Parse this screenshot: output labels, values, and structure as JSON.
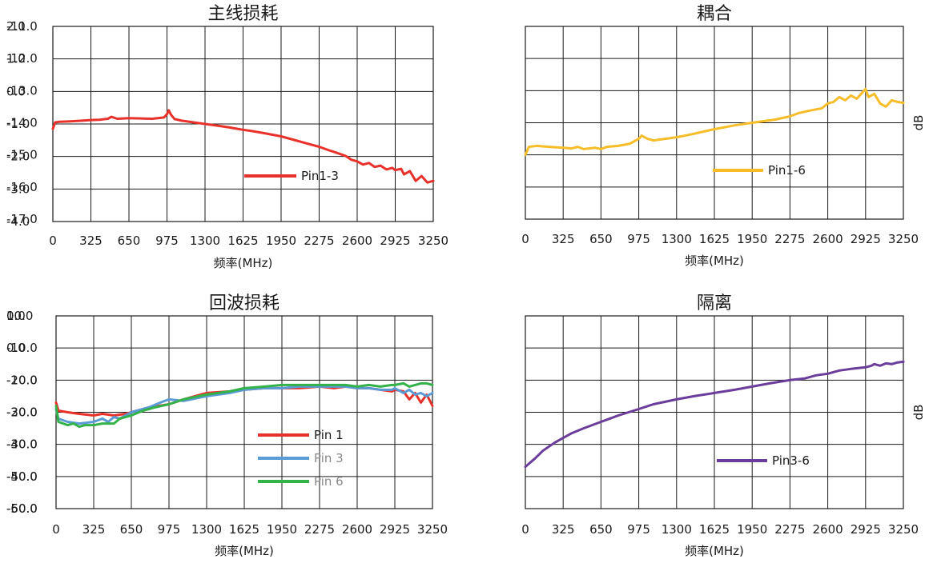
{
  "colors": {
    "red": "#e8312b",
    "yellow": "#f6bd28",
    "blue": "#5b9bd5",
    "green": "#33b249",
    "purple": "#6a3d9a"
  },
  "chart_data": [
    {
      "id": "insertion-loss",
      "type": "line",
      "title": "主线损耗",
      "xlabel": "频率(MHz)",
      "ylabel": "",
      "x_ticks": [
        "0",
        "325",
        "650",
        "975",
        "1300",
        "1625",
        "1950",
        "2275",
        "2600",
        "2925",
        "3250"
      ],
      "y_ticks": [
        "2.0",
        "1.0",
        "0.0",
        "-1.0",
        "-2.0",
        "-3.0",
        "-4.0"
      ],
      "xlim": [
        0,
        3250
      ],
      "ylim": [
        -4,
        2
      ],
      "grid": true,
      "legend_position": "center-right",
      "series": [
        {
          "name": "Pin1-3",
          "color": "#e8312b",
          "x": [
            0,
            20,
            60,
            150,
            250,
            325,
            400,
            470,
            500,
            550,
            650,
            750,
            850,
            950,
            975,
            990,
            1010,
            1040,
            1100,
            1200,
            1300,
            1400,
            1500,
            1625,
            1700,
            1800,
            1950,
            2050,
            2150,
            2275,
            2350,
            2420,
            2500,
            2550,
            2600,
            2650,
            2700,
            2750,
            2800,
            2850,
            2900,
            2925,
            2975,
            3000,
            3050,
            3100,
            3150,
            3200,
            3250
          ],
          "y": [
            -1.15,
            -0.95,
            -0.93,
            -0.92,
            -0.9,
            -0.88,
            -0.87,
            -0.84,
            -0.78,
            -0.84,
            -0.82,
            -0.83,
            -0.84,
            -0.8,
            -0.7,
            -0.58,
            -0.72,
            -0.85,
            -0.9,
            -0.95,
            -1.0,
            -1.05,
            -1.1,
            -1.18,
            -1.22,
            -1.28,
            -1.38,
            -1.48,
            -1.58,
            -1.7,
            -1.8,
            -1.88,
            -1.98,
            -2.1,
            -2.15,
            -2.25,
            -2.2,
            -2.32,
            -2.28,
            -2.4,
            -2.35,
            -2.42,
            -2.38,
            -2.55,
            -2.45,
            -2.75,
            -2.6,
            -2.8,
            -2.75
          ]
        }
      ]
    },
    {
      "id": "coupling",
      "type": "line",
      "title": "耦合",
      "xlabel": "频率(MHz)",
      "ylabel": "dB",
      "x_ticks": [
        "0",
        "325",
        "650",
        "975",
        "1300",
        "1625",
        "1950",
        "2275",
        "2600",
        "2925",
        "3250"
      ],
      "y_ticks": [
        "-11.0",
        "-12.0",
        "-13.0",
        "-14.0",
        "-15.0",
        "-16.0",
        "-17.0"
      ],
      "xlim": [
        0,
        3250
      ],
      "ylim": [
        -17,
        -11
      ],
      "grid": true,
      "legend_position": "center-right",
      "series": [
        {
          "name": "Pin1-6",
          "color": "#f6bd28",
          "x": [
            0,
            30,
            100,
            200,
            325,
            400,
            450,
            500,
            550,
            600,
            650,
            700,
            800,
            900,
            975,
            1000,
            1050,
            1100,
            1200,
            1300,
            1400,
            1500,
            1625,
            1700,
            1800,
            1950,
            2050,
            2150,
            2275,
            2350,
            2450,
            2550,
            2600,
            2650,
            2700,
            2750,
            2800,
            2850,
            2900,
            2925,
            2950,
            3000,
            3050,
            3100,
            3150,
            3200,
            3250
          ],
          "y": [
            -15.0,
            -14.75,
            -14.72,
            -14.75,
            -14.78,
            -14.8,
            -14.75,
            -14.82,
            -14.8,
            -14.78,
            -14.82,
            -14.75,
            -14.72,
            -14.65,
            -14.5,
            -14.4,
            -14.5,
            -14.55,
            -14.5,
            -14.45,
            -14.38,
            -14.3,
            -14.2,
            -14.15,
            -14.08,
            -14.0,
            -13.95,
            -13.9,
            -13.8,
            -13.7,
            -13.62,
            -13.55,
            -13.4,
            -13.35,
            -13.2,
            -13.3,
            -13.15,
            -13.25,
            -13.05,
            -12.95,
            -13.2,
            -13.1,
            -13.4,
            -13.5,
            -13.3,
            -13.35,
            -13.38
          ]
        }
      ]
    },
    {
      "id": "return-loss",
      "type": "line",
      "title": "回波损耗",
      "xlabel": "频率(MHz)",
      "ylabel": "",
      "x_ticks": [
        "0",
        "325",
        "650",
        "975",
        "1300",
        "1625",
        "1950",
        "2275",
        "2600",
        "2925",
        "3250"
      ],
      "y_ticks": [
        "10.0",
        "0.0",
        "-10.0",
        "-20.0",
        "-30.0",
        "-40.0",
        "-50.0"
      ],
      "xlim": [
        0,
        3250
      ],
      "ylim": [
        -50,
        10
      ],
      "grid": true,
      "legend_position": "bottom-center",
      "series": [
        {
          "name": "Pin 1",
          "color": "#e8312b",
          "x": [
            0,
            20,
            100,
            200,
            325,
            400,
            500,
            600,
            650,
            800,
            975,
            1100,
            1300,
            1500,
            1625,
            1800,
            1950,
            2100,
            2275,
            2400,
            2500,
            2600,
            2700,
            2800,
            2900,
            2925,
            3000,
            3050,
            3100,
            3150,
            3200,
            3250
          ],
          "y": [
            -17,
            -19.5,
            -20,
            -20.5,
            -21,
            -20.5,
            -21,
            -20.5,
            -20,
            -18.5,
            -17.5,
            -16,
            -14,
            -13.5,
            -13,
            -12.5,
            -12.5,
            -12.5,
            -12,
            -12.5,
            -12,
            -12.5,
            -12.5,
            -13,
            -13.5,
            -13,
            -13.5,
            -16,
            -14,
            -17,
            -14.5,
            -18
          ]
        },
        {
          "name": "Pin 3",
          "color": "#5b9bd5",
          "x": [
            0,
            20,
            100,
            200,
            325,
            400,
            450,
            500,
            550,
            650,
            800,
            900,
            975,
            1100,
            1300,
            1500,
            1625,
            1800,
            1950,
            2100,
            2275,
            2400,
            2500,
            2600,
            2700,
            2800,
            2900,
            2925,
            3000,
            3050,
            3100,
            3150,
            3200,
            3250
          ],
          "y": [
            -19,
            -22,
            -23,
            -23.5,
            -23,
            -22,
            -23,
            -21.5,
            -22,
            -20,
            -18.5,
            -17,
            -16,
            -16.5,
            -15,
            -14,
            -13,
            -12.5,
            -12.5,
            -12,
            -12,
            -12,
            -12,
            -12.5,
            -12.5,
            -13,
            -13,
            -12.5,
            -14,
            -13,
            -14.5,
            -14,
            -15,
            -14
          ]
        },
        {
          "name": "Pin 6",
          "color": "#33b249",
          "x": [
            0,
            20,
            100,
            150,
            200,
            250,
            325,
            400,
            500,
            550,
            650,
            750,
            850,
            975,
            1100,
            1300,
            1500,
            1625,
            1800,
            1950,
            2100,
            2275,
            2400,
            2500,
            2600,
            2700,
            2800,
            2900,
            2925,
            3000,
            3050,
            3100,
            3150,
            3200,
            3250
          ],
          "y": [
            -18,
            -23,
            -24,
            -23.5,
            -24.5,
            -24,
            -24,
            -23.5,
            -23.5,
            -22,
            -21,
            -19.5,
            -18.5,
            -17.5,
            -16,
            -14.5,
            -13.5,
            -12.5,
            -12,
            -11.5,
            -11.5,
            -11.5,
            -11.5,
            -11.5,
            -12,
            -11.5,
            -12,
            -11.5,
            -11.5,
            -11,
            -12,
            -11.5,
            -11,
            -11,
            -11.5
          ]
        }
      ]
    },
    {
      "id": "isolation",
      "type": "line",
      "title": "隔离",
      "xlabel": "频率(MHz)",
      "ylabel": "dB",
      "x_ticks": [
        "0",
        "325",
        "650",
        "975",
        "1300",
        "1625",
        "1950",
        "2275",
        "2600",
        "2925",
        "3250"
      ],
      "y_ticks": [
        "0.0",
        "-10.0",
        "-20.0",
        "-30.0",
        "-40.0",
        "-50.0",
        "-60.0"
      ],
      "xlim": [
        0,
        3250
      ],
      "ylim": [
        -60,
        0
      ],
      "grid": true,
      "legend_position": "center-right",
      "series": [
        {
          "name": "Pin3-6",
          "color": "#6a3d9a",
          "x": [
            0,
            30,
            80,
            150,
            250,
            325,
            400,
            500,
            650,
            800,
            975,
            1100,
            1300,
            1450,
            1625,
            1800,
            1950,
            2100,
            2275,
            2400,
            2500,
            2600,
            2700,
            2800,
            2925,
            2975,
            3000,
            3050,
            3100,
            3150,
            3200,
            3250
          ],
          "y": [
            -47,
            -46,
            -44.5,
            -42,
            -39.5,
            -38,
            -36.5,
            -35,
            -33,
            -31,
            -29,
            -27.5,
            -26,
            -25,
            -24,
            -23,
            -22,
            -21,
            -20,
            -19.5,
            -18.5,
            -18,
            -17,
            -16.5,
            -16,
            -15.5,
            -15,
            -15.5,
            -14.8,
            -15,
            -14.5,
            -14.3
          ]
        }
      ]
    }
  ]
}
